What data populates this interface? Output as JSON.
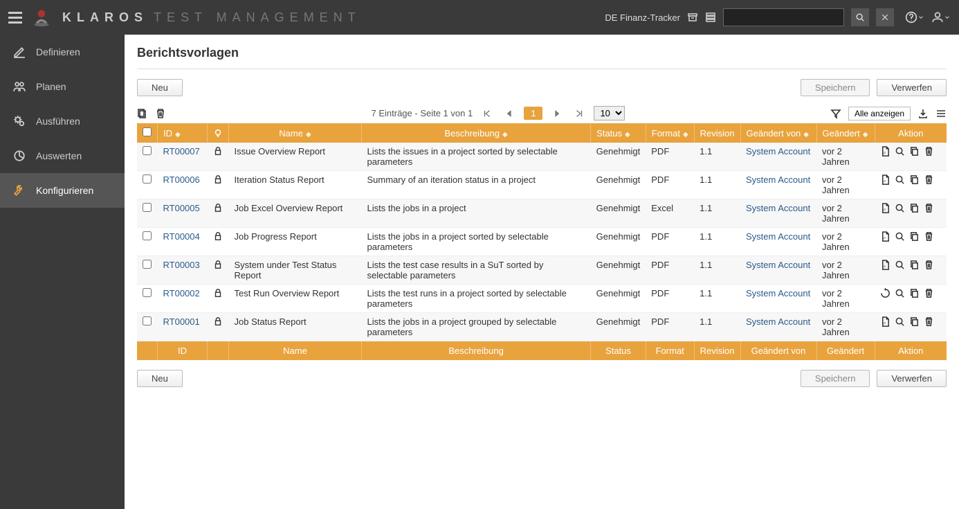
{
  "topbar": {
    "brand_main": "KLAROS",
    "brand_sub": "TEST MANAGEMENT",
    "project_label": "DE Finanz-Tracker"
  },
  "sidebar": {
    "items": [
      {
        "key": "definieren",
        "label": "Definieren"
      },
      {
        "key": "planen",
        "label": "Planen"
      },
      {
        "key": "ausfuehren",
        "label": "Ausführen"
      },
      {
        "key": "auswerten",
        "label": "Auswerten"
      },
      {
        "key": "konfigurieren",
        "label": "Konfigurieren"
      }
    ]
  },
  "page": {
    "title": "Berichtsvorlagen"
  },
  "buttons": {
    "new": "Neu",
    "save": "Speichern",
    "discard": "Verwerfen",
    "show_all": "Alle anzeigen"
  },
  "pager": {
    "summary": "7 Einträge - Seite 1 von 1",
    "current_page": "1",
    "page_size": "10"
  },
  "table": {
    "columns": {
      "id": "ID",
      "name": "Name",
      "desc": "Beschreibung",
      "status": "Status",
      "format": "Format",
      "revision": "Revision",
      "changed_by": "Geändert von",
      "changed": "Geändert",
      "action": "Aktion"
    },
    "rows": [
      {
        "id": "RT00007",
        "name": "Issue Overview Report",
        "desc": "Lists the issues in a project sorted by selectable parameters",
        "status": "Genehmigt",
        "format": "PDF",
        "rev": "1.1",
        "by": "System Account",
        "when": "vor 2 Jahren",
        "loading": false
      },
      {
        "id": "RT00006",
        "name": "Iteration Status Report",
        "desc": "Summary of an iteration status in a project",
        "status": "Genehmigt",
        "format": "PDF",
        "rev": "1.1",
        "by": "System Account",
        "when": "vor 2 Jahren",
        "loading": false
      },
      {
        "id": "RT00005",
        "name": "Job Excel Overview Report",
        "desc": "Lists the jobs in a project",
        "status": "Genehmigt",
        "format": "Excel",
        "rev": "1.1",
        "by": "System Account",
        "when": "vor 2 Jahren",
        "loading": false
      },
      {
        "id": "RT00004",
        "name": "Job Progress Report",
        "desc": "Lists the jobs in a project sorted by selectable parameters",
        "status": "Genehmigt",
        "format": "PDF",
        "rev": "1.1",
        "by": "System Account",
        "when": "vor 2 Jahren",
        "loading": false
      },
      {
        "id": "RT00003",
        "name": "System under Test Status Report",
        "desc": "Lists the test case results in a SuT sorted by selectable parameters",
        "status": "Genehmigt",
        "format": "PDF",
        "rev": "1.1",
        "by": "System Account",
        "when": "vor 2 Jahren",
        "loading": false
      },
      {
        "id": "RT00002",
        "name": "Test Run Overview Report",
        "desc": "Lists the test runs in a project sorted by selectable parameters",
        "status": "Genehmigt",
        "format": "PDF",
        "rev": "1.1",
        "by": "System Account",
        "when": "vor 2 Jahren",
        "loading": true
      },
      {
        "id": "RT00001",
        "name": "Job Status Report",
        "desc": "Lists the jobs in a project grouped by selectable parameters",
        "status": "Genehmigt",
        "format": "PDF",
        "rev": "1.1",
        "by": "System Account",
        "when": "vor 2 Jahren",
        "loading": false
      }
    ]
  },
  "colors": {
    "header_bg": "#e8a33d",
    "topbar_bg": "#3a3a3a",
    "link": "#2a5a8a"
  }
}
